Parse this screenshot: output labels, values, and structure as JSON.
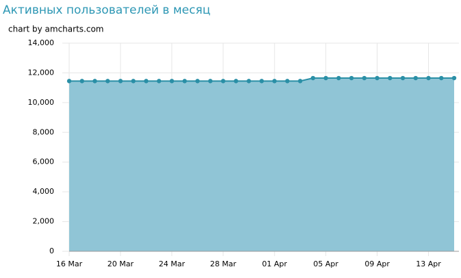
{
  "chart_data": {
    "type": "area",
    "title": "Активных пользователей в месяц",
    "credit": "chart by amcharts.com",
    "categories": [
      "16 Mar",
      null,
      null,
      null,
      "20 Mar",
      null,
      null,
      null,
      "24 Mar",
      null,
      null,
      null,
      "28 Mar",
      null,
      null,
      null,
      "01 Apr",
      null,
      null,
      null,
      "05 Apr",
      null,
      null,
      null,
      "09 Apr",
      null,
      null,
      null,
      "13 Apr",
      null,
      null
    ],
    "series": [
      {
        "name": "Активных пользователей",
        "color": "#2a8fa6",
        "fill": "#90c5d6",
        "values": [
          11450,
          11450,
          11450,
          11450,
          11450,
          11450,
          11450,
          11450,
          11450,
          11450,
          11450,
          11450,
          11450,
          11450,
          11450,
          11450,
          11450,
          11450,
          11450,
          11650,
          11650,
          11650,
          11650,
          11650,
          11650,
          11650,
          11650,
          11650,
          11650,
          11650,
          11650
        ]
      }
    ],
    "ylim": [
      0,
      14000
    ],
    "yticks": [
      0,
      {
        "value": 2000,
        "label": "2,000"
      },
      {
        "value": 4000,
        "label": "4,000"
      },
      {
        "value": 6000,
        "label": "6,000"
      },
      {
        "value": 8000,
        "label": "8,000"
      },
      {
        "value": 10000,
        "label": "10,000"
      },
      {
        "value": 12000,
        "label": "12,000"
      },
      {
        "value": 14000,
        "label": "14,000"
      }
    ],
    "grid": true
  }
}
